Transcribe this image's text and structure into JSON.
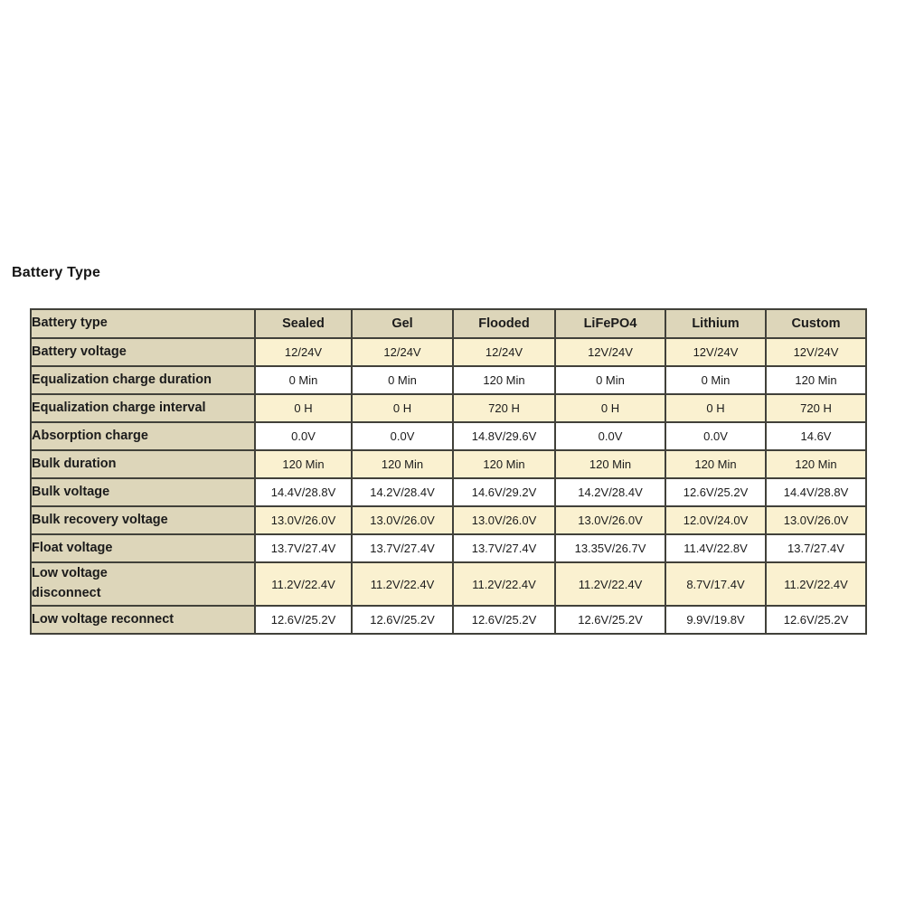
{
  "page": {
    "title": "Battery Type"
  },
  "colors": {
    "header_tan": "#ddd6ba",
    "stripe_cream": "#faf1d0",
    "stripe_white": "#ffffff",
    "border": "#41413a",
    "text": "#1b1b1b"
  },
  "table": {
    "columns": [
      "Battery type",
      "Sealed",
      "Gel",
      "Flooded",
      "LiFePO4",
      "Lithium",
      "Custom"
    ],
    "rows": [
      {
        "label": "Battery voltage",
        "values": [
          "12/24V",
          "12/24V",
          "12/24V",
          "12V/24V",
          "12V/24V",
          "12V/24V"
        ]
      },
      {
        "label": "Equalization charge duration",
        "values": [
          "0 Min",
          "0 Min",
          "120 Min",
          "0 Min",
          "0 Min",
          "120 Min"
        ]
      },
      {
        "label": "Equalization charge interval",
        "values": [
          "0 H",
          "0 H",
          "720 H",
          "0 H",
          "0 H",
          "720 H"
        ]
      },
      {
        "label": "Absorption charge",
        "values": [
          "0.0V",
          "0.0V",
          "14.8V/29.6V",
          "0.0V",
          "0.0V",
          "14.6V"
        ]
      },
      {
        "label": "Bulk duration",
        "values": [
          "120 Min",
          "120 Min",
          "120 Min",
          "120 Min",
          "120 Min",
          "120 Min"
        ]
      },
      {
        "label": "Bulk voltage",
        "values": [
          "14.4V/28.8V",
          "14.2V/28.4V",
          "14.6V/29.2V",
          "14.2V/28.4V",
          "12.6V/25.2V",
          "14.4V/28.8V"
        ]
      },
      {
        "label": "Bulk recovery voltage",
        "values": [
          "13.0V/26.0V",
          "13.0V/26.0V",
          "13.0V/26.0V",
          "13.0V/26.0V",
          "12.0V/24.0V",
          "13.0V/26.0V"
        ]
      },
      {
        "label": "Float voltage",
        "values": [
          "13.7V/27.4V",
          "13.7V/27.4V",
          "13.7V/27.4V",
          "13.35V/26.7V",
          "11.4V/22.8V",
          "13.7/27.4V"
        ]
      },
      {
        "label": "Low voltage\ndisconnect",
        "values": [
          "11.2V/22.4V",
          "11.2V/22.4V",
          "11.2V/22.4V",
          "11.2V/22.4V",
          "8.7V/17.4V",
          "11.2V/22.4V"
        ]
      },
      {
        "label": "Low voltage reconnect",
        "values": [
          "12.6V/25.2V",
          "12.6V/25.2V",
          "12.6V/25.2V",
          "12.6V/25.2V",
          "9.9V/19.8V",
          "12.6V/25.2V"
        ]
      }
    ]
  }
}
